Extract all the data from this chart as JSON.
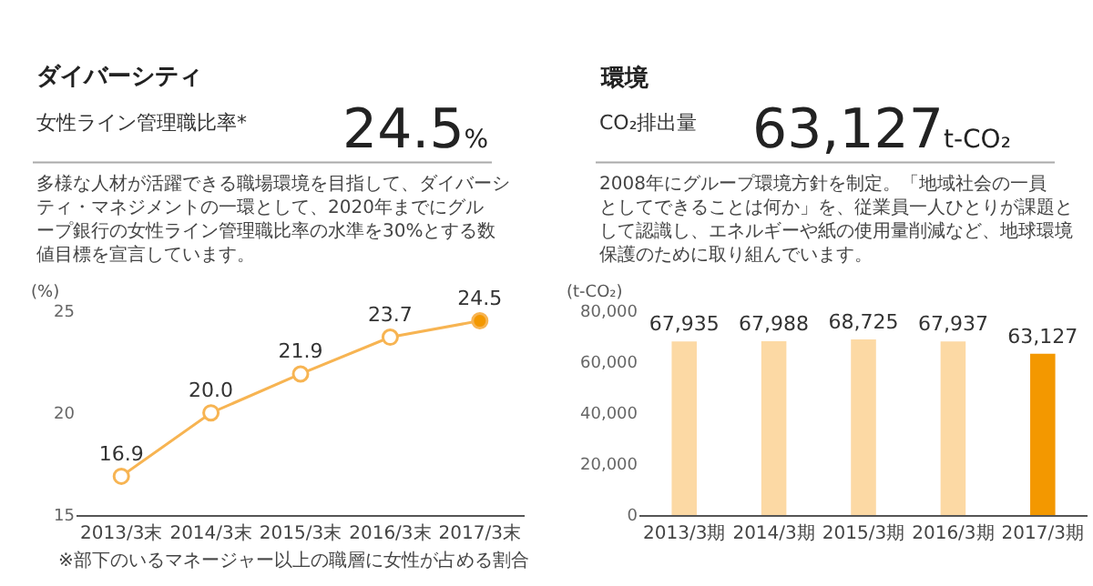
{
  "chart_data": [
    {
      "type": "line",
      "title": "ダイバーシティ",
      "subtitle": "女性ライン管理職比率*",
      "ylabel": "(%)",
      "categories": [
        "2013/3末",
        "2014/3末",
        "2015/3末",
        "2016/3末",
        "2017/3末"
      ],
      "series": [
        {
          "color": "#f7b452",
          "colors": [
            "#ffffff",
            "#ffffff",
            "#ffffff",
            "#ffffff",
            "#f39800"
          ],
          "values": [
            16.9,
            20.0,
            21.9,
            23.7,
            24.5
          ],
          "value_labels": [
            "16.9",
            "20.0",
            "21.9",
            "23.7",
            "24.5"
          ]
        }
      ],
      "ylim": [
        15,
        25
      ],
      "yticks": [
        15,
        20,
        25
      ],
      "marker": "circle",
      "grid": false,
      "annotations": [
        "24.5%",
        "多様な人材が活躍できる職場環境を目指して、ダイバーシティ・マネジメントの一環として、2020年までにグループ銀行の女性ライン管理職比率の水準を30%とする数値目標を宣言しています。",
        "※部下のいるマネージャー以上の職層に女性が占める割合"
      ]
    },
    {
      "type": "bar",
      "title": "環境",
      "subtitle": "CO₂排出量",
      "ylabel": "(t-CO₂)",
      "categories": [
        "2013/3期",
        "2014/3期",
        "2015/3期",
        "2016/3期",
        "2017/3期"
      ],
      "series": [
        {
          "colors": [
            "#fcd9a4",
            "#fcd9a4",
            "#fcd9a4",
            "#fcd9a4",
            "#f39800"
          ],
          "values": [
            67935,
            67988,
            68725,
            67937,
            63127
          ],
          "value_labels": [
            "67,935",
            "67,988",
            "68,725",
            "67,937",
            "63,127"
          ]
        }
      ],
      "ylim": [
        0,
        80000
      ],
      "yticks": [
        0,
        {
          "value": 20000,
          "label": "20,000"
        },
        {
          "value": 40000,
          "label": "40,000"
        },
        {
          "value": 60000,
          "label": "60,000"
        },
        {
          "value": 80000,
          "label": "80,000"
        }
      ],
      "grid": false,
      "annotations": [
        "63,127t-CO₂",
        "2008年にグループ環境方針を制定。「地域社会の一員としてできることは何か」を、従業員一人ひとりが課題として認識し、エネルギーや紙の使用量削減など、地球環境保護のために取り組んでいます。"
      ]
    }
  ]
}
